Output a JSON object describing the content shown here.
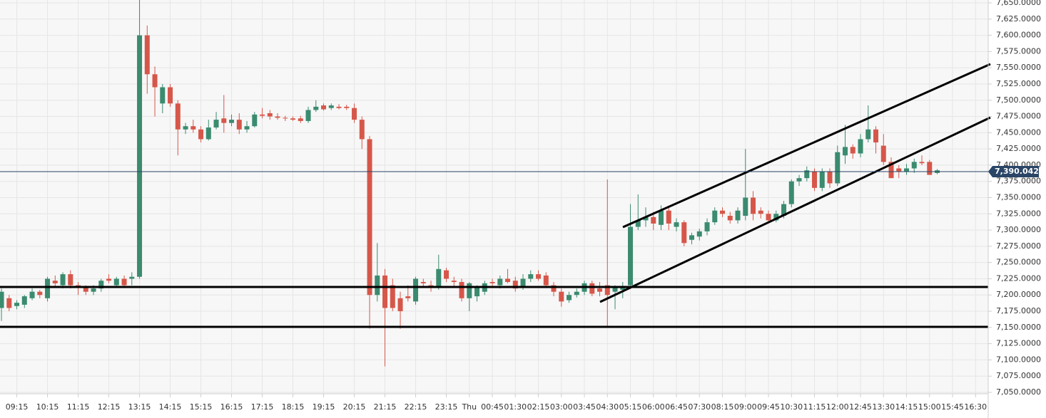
{
  "chart_data": {
    "type": "candlestick",
    "up_color": "#3b8b6f",
    "down_color": "#d6574a",
    "grid": true,
    "xlim": [
      -0.19,
      128.65
    ],
    "ylim": [
      7047.8,
      7654.4
    ],
    "xticks": [
      {
        "value": 2,
        "label": "09:15"
      },
      {
        "value": 6,
        "label": "10:15"
      },
      {
        "value": 10,
        "label": "11:15"
      },
      {
        "value": 14,
        "label": "12:15"
      },
      {
        "value": 18,
        "label": "13:15"
      },
      {
        "value": 22,
        "label": "14:15"
      },
      {
        "value": 26,
        "label": "15:15"
      },
      {
        "value": 30,
        "label": "16:15"
      },
      {
        "value": 34,
        "label": "17:15"
      },
      {
        "value": 38,
        "label": "18:15"
      },
      {
        "value": 42,
        "label": "19:15"
      },
      {
        "value": 46,
        "label": "20:15"
      },
      {
        "value": 50,
        "label": "21:15"
      },
      {
        "value": 54,
        "label": "22:15"
      },
      {
        "value": 58,
        "label": "23:15"
      },
      {
        "value": 61,
        "label": "Thu"
      },
      {
        "value": 64,
        "label": "00:45"
      },
      {
        "value": 67,
        "label": "01:30"
      },
      {
        "value": 70,
        "label": "02:15"
      },
      {
        "value": 73,
        "label": "03:00"
      },
      {
        "value": 76,
        "label": "03:45"
      },
      {
        "value": 79,
        "label": "04:30"
      },
      {
        "value": 82,
        "label": "05:15"
      },
      {
        "value": 85,
        "label": "06:00"
      },
      {
        "value": 88,
        "label": "06:45"
      },
      {
        "value": 91,
        "label": "07:30"
      },
      {
        "value": 94,
        "label": "08:15"
      },
      {
        "value": 97,
        "label": "09:00"
      },
      {
        "value": 100,
        "label": "09:45"
      },
      {
        "value": 103,
        "label": "10:30"
      },
      {
        "value": 106,
        "label": "11:15"
      },
      {
        "value": 109,
        "label": "12:00"
      },
      {
        "value": 112,
        "label": "12:45"
      },
      {
        "value": 115,
        "label": "13:30"
      },
      {
        "value": 118,
        "label": "14:15"
      },
      {
        "value": 121,
        "label": "15:00"
      },
      {
        "value": 124,
        "label": "15:45"
      },
      {
        "value": 127,
        "label": "16:30"
      }
    ],
    "yticks": [
      {
        "value": 7050,
        "label": "7,050.0000"
      },
      {
        "value": 7075,
        "label": "7,075.0000"
      },
      {
        "value": 7100,
        "label": "7,100.0000"
      },
      {
        "value": 7125,
        "label": "7,125.0000"
      },
      {
        "value": 7150,
        "label": "7,150.0000"
      },
      {
        "value": 7175,
        "label": "7,175.0000"
      },
      {
        "value": 7200,
        "label": "7,200.0000"
      },
      {
        "value": 7225,
        "label": "7,225.0000"
      },
      {
        "value": 7250,
        "label": "7,250.0000"
      },
      {
        "value": 7275,
        "label": "7,275.0000"
      },
      {
        "value": 7300,
        "label": "7,300.0000"
      },
      {
        "value": 7325,
        "label": "7,325.0000"
      },
      {
        "value": 7350,
        "label": "7,350.0000"
      },
      {
        "value": 7375,
        "label": "7,375.0000"
      },
      {
        "value": 7400,
        "label": "7,400.0000"
      },
      {
        "value": 7425,
        "label": "7,425.0000"
      },
      {
        "value": 7450,
        "label": "7,450.0000"
      },
      {
        "value": 7475,
        "label": "7,475.0000"
      },
      {
        "value": 7500,
        "label": "7,500.0000"
      },
      {
        "value": 7525,
        "label": "7,525.0000"
      },
      {
        "value": 7550,
        "label": "7,550.0000"
      },
      {
        "value": 7575,
        "label": "7,575.0000"
      },
      {
        "value": 7600,
        "label": "7,600.0000"
      },
      {
        "value": 7625,
        "label": "7,625.0000"
      },
      {
        "value": 7650,
        "label": "7,650.0000"
      }
    ],
    "last_price": {
      "value": 7390.042,
      "label": "7,390.0420",
      "color": "#2a4566"
    },
    "x": [
      0,
      1,
      2,
      3,
      4,
      5,
      6,
      7,
      8,
      9,
      10,
      11,
      12,
      13,
      14,
      15,
      16,
      17,
      18,
      19,
      20,
      21,
      22,
      23,
      24,
      25,
      26,
      27,
      28,
      29,
      30,
      31,
      32,
      33,
      34,
      35,
      36,
      37,
      38,
      39,
      40,
      41,
      42,
      43,
      44,
      45,
      46,
      47,
      48,
      49,
      50,
      51,
      52,
      53,
      54,
      55,
      56,
      57,
      58,
      59,
      60,
      61,
      62,
      63,
      64,
      65,
      66,
      67,
      68,
      69,
      70,
      71,
      72,
      73,
      74,
      75,
      76,
      77,
      78,
      79,
      80,
      81,
      82,
      83,
      84,
      85,
      86,
      87,
      88,
      89,
      90,
      91,
      92,
      93,
      94,
      95,
      96,
      97,
      98,
      99,
      100,
      101,
      102,
      103,
      104,
      105,
      106,
      107,
      108,
      109,
      110,
      111,
      112,
      113,
      114,
      115,
      116,
      117,
      118,
      119,
      120,
      121,
      122
    ],
    "open": [
      7180,
      7195,
      7183,
      7185,
      7195,
      7205,
      7195,
      7222,
      7215,
      7232,
      7215,
      7212,
      7205,
      7210,
      7225,
      7215,
      7225,
      7225,
      7228,
      7600,
      7540,
      7495,
      7520,
      7495,
      7455,
      7460,
      7455,
      7440,
      7458,
      7472,
      7465,
      7470,
      7455,
      7460,
      7478,
      7480,
      7475,
      7473,
      7472,
      7472,
      7468,
      7485,
      7492,
      7488,
      7490,
      7490,
      7488,
      7470,
      7440,
      7200,
      7230,
      7215,
      7195,
      7198,
      7190,
      7220,
      7215,
      7212,
      7238,
      7222,
      7220,
      7195,
      7198,
      7205,
      7220,
      7215,
      7225,
      7222,
      7212,
      7225,
      7232,
      7230,
      7215,
      7205,
      7192,
      7200,
      7205,
      7218,
      7210,
      7215,
      7205,
      7208,
      7215,
      7305,
      7315,
      7320,
      7308,
      7330,
      7305,
      7312,
      7285,
      7290,
      7298,
      7312,
      7330,
      7322,
      7315,
      7322,
      7350,
      7330,
      7325,
      7315,
      7322,
      7340,
      7375,
      7380,
      7390,
      7365,
      7390,
      7372,
      7415,
      7428,
      7418,
      7440,
      7455,
      7430,
      7405,
      7395,
      7390,
      7395,
      7405,
      7405,
      7388
    ],
    "high": [
      7210,
      7200,
      7192,
      7200,
      7210,
      7208,
      7228,
      7230,
      7235,
      7238,
      7220,
      7215,
      7215,
      7225,
      7232,
      7228,
      7230,
      7235,
      7660,
      7615,
      7552,
      7525,
      7525,
      7500,
      7465,
      7470,
      7460,
      7470,
      7482,
      7508,
      7478,
      7480,
      7468,
      7482,
      7488,
      7485,
      7480,
      7476,
      7475,
      7476,
      7490,
      7500,
      7495,
      7495,
      7494,
      7493,
      7495,
      7475,
      7445,
      7280,
      7240,
      7225,
      7205,
      7215,
      7228,
      7225,
      7222,
      7262,
      7242,
      7228,
      7225,
      7220,
      7215,
      7222,
      7225,
      7230,
      7240,
      7228,
      7232,
      7238,
      7238,
      7235,
      7220,
      7210,
      7205,
      7210,
      7222,
      7222,
      7220,
      7378,
      7215,
      7220,
      7340,
      7355,
      7335,
      7328,
      7338,
      7335,
      7318,
      7315,
      7296,
      7302,
      7318,
      7335,
      7335,
      7328,
      7335,
      7425,
      7360,
      7335,
      7330,
      7330,
      7345,
      7378,
      7385,
      7398,
      7395,
      7395,
      7395,
      7430,
      7462,
      7432,
      7448,
      7492,
      7460,
      7448,
      7412,
      7400,
      7402,
      7410,
      7415,
      7408,
      7394
    ],
    "low": [
      7160,
      7175,
      7178,
      7180,
      7192,
      7195,
      7190,
      7212,
      7210,
      7210,
      7200,
      7200,
      7200,
      7205,
      7218,
      7212,
      7212,
      7215,
      7225,
      7510,
      7475,
      7480,
      7490,
      7415,
      7448,
      7450,
      7435,
      7438,
      7455,
      7450,
      7460,
      7448,
      7450,
      7458,
      7472,
      7470,
      7470,
      7468,
      7468,
      7465,
      7465,
      7482,
      7484,
      7485,
      7486,
      7485,
      7465,
      7425,
      7148,
      7190,
      7090,
      7175,
      7148,
      7190,
      7185,
      7212,
      7205,
      7208,
      7220,
      7212,
      7190,
      7175,
      7190,
      7200,
      7212,
      7210,
      7218,
      7205,
      7208,
      7220,
      7222,
      7212,
      7198,
      7182,
      7188,
      7196,
      7200,
      7198,
      7198,
      7152,
      7178,
      7195,
      7210,
      7300,
      7305,
      7300,
      7300,
      7300,
      7298,
      7275,
      7278,
      7284,
      7292,
      7308,
      7320,
      7310,
      7310,
      7315,
      7315,
      7318,
      7312,
      7312,
      7318,
      7335,
      7368,
      7375,
      7360,
      7360,
      7365,
      7368,
      7402,
      7410,
      7412,
      7435,
      7418,
      7400,
      7380,
      7380,
      7385,
      7388,
      7400,
      7385,
      7386
    ],
    "close": [
      7205,
      7180,
      7188,
      7198,
      7205,
      7200,
      7225,
      7218,
      7232,
      7215,
      7212,
      7205,
      7210,
      7222,
      7222,
      7225,
      7215,
      7228,
      7600,
      7540,
      7520,
      7520,
      7495,
      7455,
      7460,
      7455,
      7440,
      7458,
      7470,
      7465,
      7470,
      7455,
      7460,
      7478,
      7476,
      7475,
      7473,
      7472,
      7470,
      7468,
      7485,
      7490,
      7486,
      7492,
      7488,
      7488,
      7470,
      7440,
      7200,
      7230,
      7180,
      7180,
      7175,
      7195,
      7225,
      7218,
      7212,
      7240,
      7225,
      7220,
      7195,
      7218,
      7212,
      7218,
      7218,
      7225,
      7220,
      7210,
      7225,
      7232,
      7225,
      7215,
      7205,
      7190,
      7200,
      7205,
      7218,
      7202,
      7205,
      7200,
      7212,
      7212,
      7305,
      7315,
      7320,
      7310,
      7330,
      7310,
      7312,
      7280,
      7292,
      7298,
      7312,
      7330,
      7325,
      7315,
      7330,
      7350,
      7325,
      7325,
      7315,
      7325,
      7340,
      7375,
      7380,
      7392,
      7365,
      7390,
      7372,
      7420,
      7428,
      7418,
      7440,
      7455,
      7435,
      7405,
      7380,
      7390,
      7395,
      7405,
      7403,
      7385,
      7392
    ]
  }
}
